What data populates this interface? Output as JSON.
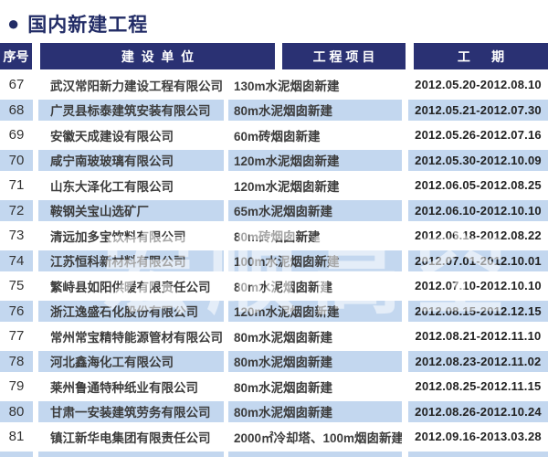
{
  "title": {
    "bullet": "●",
    "text": "国内新建工程"
  },
  "columns": {
    "no": "序号",
    "company": "建  设  单  位",
    "project": "工 程 项 目",
    "period": "工      期"
  },
  "rows": [
    {
      "no": "67",
      "company": "武汉常阳新力建设工程有限公司",
      "project": "130m水泥烟囱新建",
      "period": "2012.05.20-2012.08.10"
    },
    {
      "no": "68",
      "company": "广灵县标泰建筑安装有限公司",
      "project": "80m水泥烟囱新建",
      "period": "2012.05.21-2012.07.30"
    },
    {
      "no": "69",
      "company": "安徽天成建设有限公司",
      "project": "60m砖烟囱新建",
      "period": "2012.05.26-2012.07.16"
    },
    {
      "no": "70",
      "company": "咸宁南玻玻璃有限公司",
      "project": "120m水泥烟囱新建",
      "period": "2012.05.30-2012.10.09"
    },
    {
      "no": "71",
      "company": "山东大泽化工有限公司",
      "project": "120m水泥烟囱新建",
      "period": "2012.06.05-2012.08.25"
    },
    {
      "no": "72",
      "company": "鞍钢关宝山选矿厂",
      "project": "65m水泥烟囱新建",
      "period": "2012.06.10-2012.10.10"
    },
    {
      "no": "73",
      "company": "清远加多宝饮料有限公司",
      "project": "80m砖烟囱新建",
      "period": "2012.06.18-2012.08.22"
    },
    {
      "no": "74",
      "company": "江苏恒科新材料有限公司",
      "project": "100m水泥烟囱新建",
      "period": "2012.07.01-2012.10.01"
    },
    {
      "no": "75",
      "company": "繁峙县如阳供暖有限责任公司",
      "project": "80m水泥烟囱新建",
      "period": "2012.07.10-2012.10.10"
    },
    {
      "no": "76",
      "company": "浙江逸盛石化股份有限公司",
      "project": "120m水泥烟囱新建",
      "period": "2012.08.15-2012.12.15"
    },
    {
      "no": "77",
      "company": "常州常宝精特能源管材有限公司",
      "project": "80m水泥烟囱新建",
      "period": "2012.08.21-2012.11.10"
    },
    {
      "no": "78",
      "company": "河北鑫海化工有限公司",
      "project": "80m水泥烟囱新建",
      "period": "2012.08.23-2012.11.02"
    },
    {
      "no": "79",
      "company": "莱州鲁通特种纸业有限公司",
      "project": "80m水泥烟囱新建",
      "period": "2012.08.25-2012.11.15"
    },
    {
      "no": "80",
      "company": "甘肃一安装建筑劳务有限公司",
      "project": "80m水泥烟囱新建",
      "period": "2012.08.26-2012.10.24"
    },
    {
      "no": "81",
      "company": "镇江新华电集团有限责任公司",
      "project": "2000㎡冷却塔、100m烟囱新建",
      "period": "2012.09.16-2013.03.28"
    }
  ],
  "watermark": {
    "text": "宏顺高空"
  },
  "colors": {
    "header_navy": "#2a3173",
    "title_navy": "#222c66",
    "stripe_blue": "#c3d7ef",
    "body_text": "#3d3d3d",
    "background": "#ffffff"
  }
}
